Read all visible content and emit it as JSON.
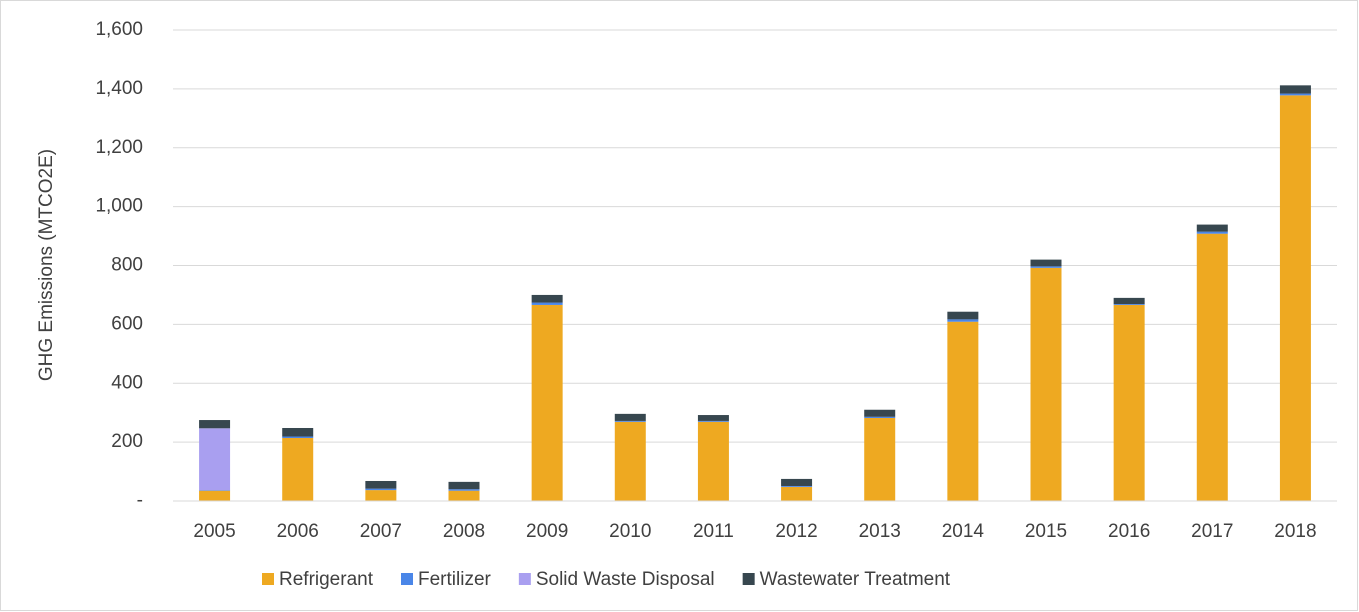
{
  "chart_data": {
    "type": "stacked_bar",
    "y_label": "GHG Emissions (MTCO2E)",
    "categories": [
      "2005",
      "2006",
      "2007",
      "2008",
      "2009",
      "2010",
      "2011",
      "2012",
      "2013",
      "2014",
      "2015",
      "2016",
      "2017",
      "2018"
    ],
    "series": [
      {
        "name": "Refrigerant",
        "color": "#eea921",
        "values": [
          35,
          214,
          37,
          35,
          666,
          269,
          269,
          48,
          282,
          609,
          792,
          666,
          908,
          1378
        ]
      },
      {
        "name": "Fertilizer",
        "color": "#4a86e8",
        "values": [
          2,
          5,
          5,
          5,
          8,
          3,
          3,
          3,
          4,
          8,
          5,
          3,
          7,
          6
        ]
      },
      {
        "name": "Solid Waste Disposal",
        "color": "#a99ff0",
        "values": [
          210,
          0,
          0,
          0,
          0,
          0,
          0,
          0,
          0,
          0,
          0,
          0,
          0,
          0
        ]
      },
      {
        "name": "Wastewater Treatment",
        "color": "#37474f",
        "values": [
          28,
          29,
          26,
          25,
          26,
          24,
          20,
          24,
          24,
          26,
          23,
          21,
          24,
          28
        ]
      }
    ],
    "ylim": [
      0,
      1600
    ],
    "yticks": [
      {
        "value": 0,
        "label": "-"
      },
      200,
      400,
      600,
      800,
      {
        "value": 1000,
        "label": "1,000"
      },
      {
        "value": 1200,
        "label": "1,200"
      },
      {
        "value": 1400,
        "label": "1,400"
      },
      {
        "value": 1600,
        "label": "1,600"
      }
    ],
    "grid": true,
    "legend": "bottom"
  }
}
